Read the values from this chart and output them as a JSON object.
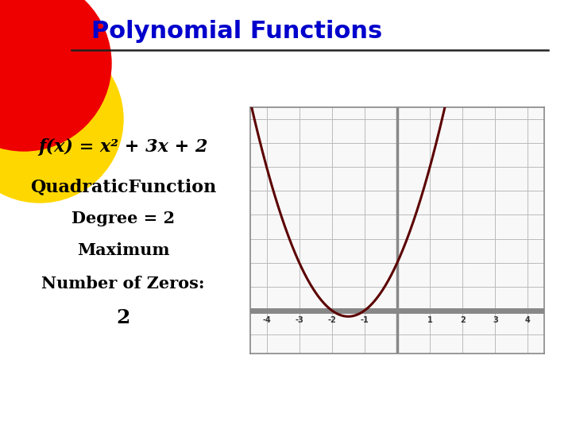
{
  "title": "Polynomial Functions",
  "title_color": "#0000CC",
  "title_fontsize": 22,
  "bg_color": "#FFFFFF",
  "line_color": "#222222",
  "circle_red_color": "#EE0000",
  "circle_yellow_color": "#FFD700",
  "text_lines": [
    "f(x) = x² + 3x + 2",
    "QuadraticFunction",
    "Degree = 2",
    "Maximum",
    "Number of Zeros:",
    "2"
  ],
  "text_color": "#000000",
  "curve_color": "#5C0000",
  "curve_linewidth": 2.2,
  "x_min": -4.5,
  "x_max": 4.5,
  "y_min": -1.8,
  "y_max": 8.5,
  "grid_color": "#BBBBBB",
  "axis_color": "#888888",
  "tick_labels_x": [
    -4,
    -3,
    -2,
    -1,
    1,
    2,
    3,
    4
  ],
  "plot_bg": "#F8F8F8",
  "graph_border_color": "#888888"
}
